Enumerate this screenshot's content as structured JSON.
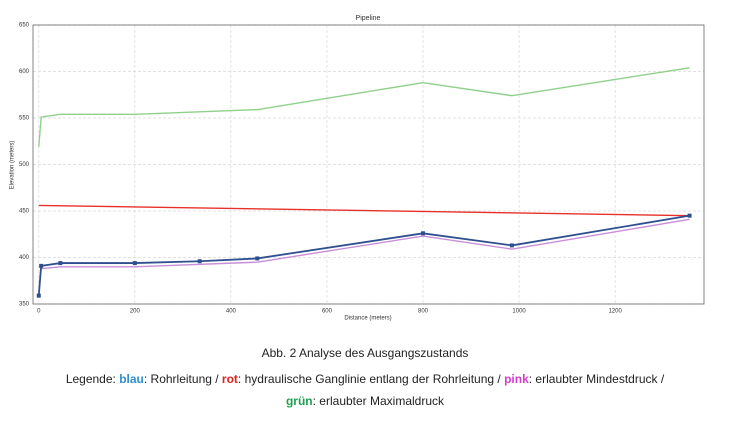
{
  "chart_data": {
    "type": "line",
    "title": "Pipeline",
    "x_label": "Distance (meters)",
    "y_label": "Elevation (meters)",
    "xlim": [
      -12,
      1385
    ],
    "xticks": [
      0,
      200,
      400,
      600,
      800,
      1000,
      1200
    ],
    "ylim": [
      350,
      650
    ],
    "yticks": [
      350,
      400,
      450,
      500,
      550,
      600,
      650
    ],
    "grid": true,
    "series": [
      {
        "color": "#8fd18a",
        "markers": false,
        "x": [
          0,
          5,
          45,
          200,
          455,
          800,
          985,
          1355
        ],
        "values": [
          519,
          551,
          554,
          554,
          559,
          588,
          574,
          604
        ]
      },
      {
        "color": "#e8302a",
        "markers": false,
        "x": [
          0,
          1355
        ],
        "values": [
          456,
          445
        ]
      },
      {
        "color": "#c98fd6",
        "markers": false,
        "x": [
          5,
          45,
          200,
          455,
          800,
          985,
          1355
        ],
        "values": [
          388,
          390,
          390,
          395,
          423,
          409,
          441
        ]
      },
      {
        "color": "#2f4f8f",
        "markers": true,
        "x": [
          0,
          5,
          45,
          200,
          335,
          455,
          800,
          985,
          1355
        ],
        "values": [
          359,
          391,
          394,
          394,
          396,
          399,
          426,
          413,
          445
        ]
      }
    ]
  },
  "caption": {
    "title": "Abb. 2 Analyse des Ausgangszustands",
    "lines": [
      [
        {
          "text": "Legende: "
        },
        {
          "text": "blau",
          "color": "#2f8fd0"
        },
        {
          "text": ": Rohrleitung / "
        },
        {
          "text": "rot",
          "color": "#e0201a"
        },
        {
          "text": ": hydraulische Ganglinie entlang der Rohrleitung / "
        },
        {
          "text": "pink",
          "color": "#d23fd0"
        },
        {
          "text": ": erlaubter Mindestdruck /"
        }
      ],
      [
        {
          "text": "grün",
          "color": "#1fa050"
        },
        {
          "text": ": erlaubter Maximaldruck"
        }
      ]
    ]
  }
}
